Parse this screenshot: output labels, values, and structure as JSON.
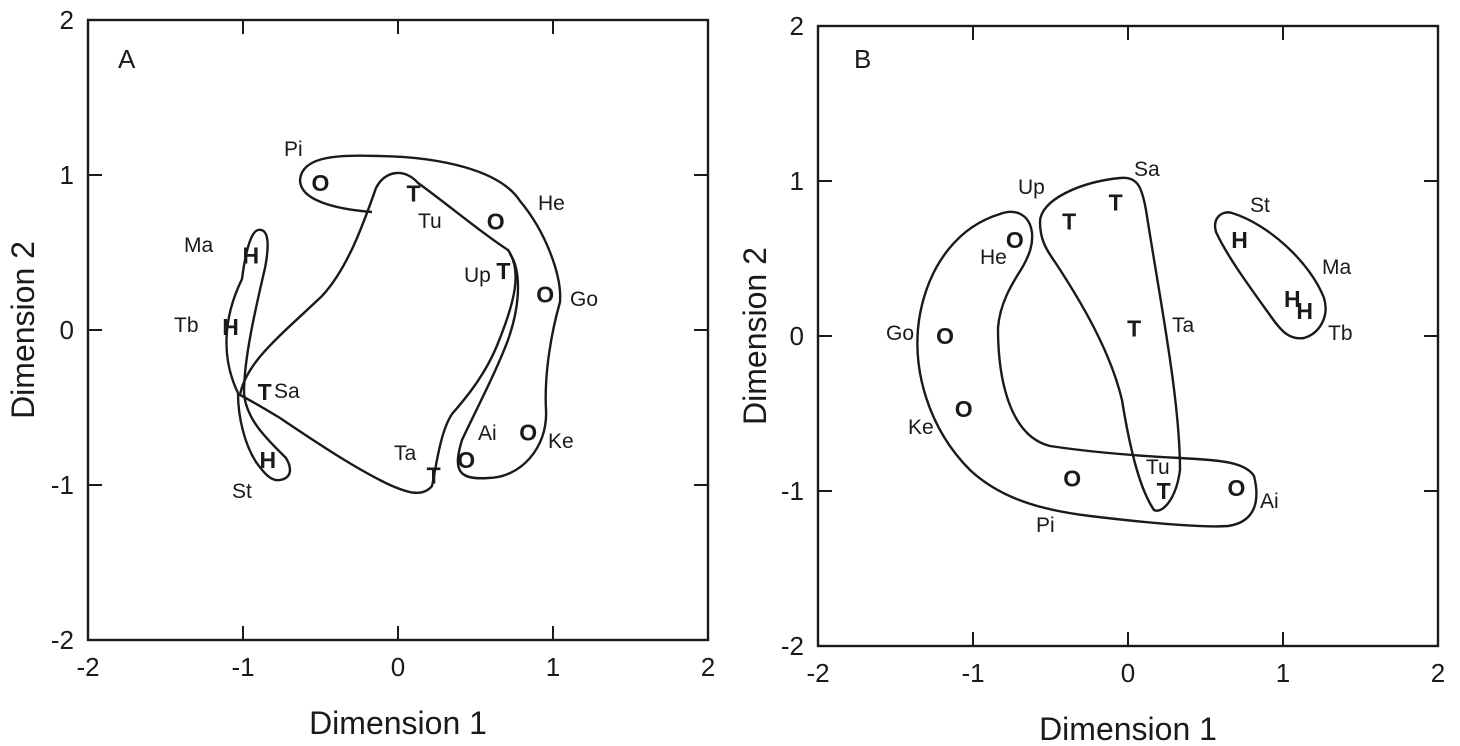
{
  "chart_data": [
    {
      "type": "scatter",
      "panel_label": "A",
      "xlabel": "Dimension 1",
      "ylabel": "Dimension 2",
      "xlim": [
        -2,
        2
      ],
      "ylim": [
        -2,
        2
      ],
      "xticks": [
        -2,
        -1,
        0,
        1,
        2
      ],
      "yticks": [
        -2,
        -1,
        0,
        1,
        2
      ],
      "grid": false,
      "points": [
        {
          "label": "Pi",
          "symbol": "O",
          "x": -0.5,
          "y": 0.95
        },
        {
          "label": "Tu",
          "symbol": "T",
          "x": 0.1,
          "y": 0.88
        },
        {
          "label": "He",
          "symbol": "O",
          "x": 0.63,
          "y": 0.7
        },
        {
          "label": "Up",
          "symbol": "T",
          "x": 0.68,
          "y": 0.38
        },
        {
          "label": "Go",
          "symbol": "O",
          "x": 0.95,
          "y": 0.23
        },
        {
          "label": "Ma",
          "symbol": "H",
          "x": -0.95,
          "y": 0.48
        },
        {
          "label": "Tb",
          "symbol": "H",
          "x": -1.08,
          "y": 0.02
        },
        {
          "label": "Sa",
          "symbol": "T",
          "x": -0.86,
          "y": -0.4
        },
        {
          "label": "St",
          "symbol": "H",
          "x": -0.84,
          "y": -0.84
        },
        {
          "label": "Ta",
          "symbol": "T",
          "x": 0.23,
          "y": -0.94
        },
        {
          "label": "Ai",
          "symbol": "O",
          "x": 0.44,
          "y": -0.84
        },
        {
          "label": "Ke",
          "symbol": "O",
          "x": 0.84,
          "y": -0.66
        }
      ]
    },
    {
      "type": "scatter",
      "panel_label": "B",
      "xlabel": "Dimension 1",
      "ylabel": "Dimension 2",
      "xlim": [
        -2,
        2
      ],
      "ylim": [
        -2,
        2
      ],
      "xticks": [
        -2,
        -1,
        0,
        1,
        2
      ],
      "yticks": [
        -2,
        -1,
        0,
        1,
        2
      ],
      "grid": false,
      "points": [
        {
          "label": "Sa",
          "symbol": "T",
          "x": -0.08,
          "y": 0.86
        },
        {
          "label": "",
          "symbol": "T",
          "x": -0.38,
          "y": 0.74
        },
        {
          "label": "Up",
          "symbol": "",
          "x": -0.6,
          "y": 0.94
        },
        {
          "label": "He",
          "symbol": "O",
          "x": -0.73,
          "y": 0.62
        },
        {
          "label": "St",
          "symbol": "H",
          "x": 0.72,
          "y": 0.62
        },
        {
          "label": "Ma",
          "symbol": "H",
          "x": 1.06,
          "y": 0.24
        },
        {
          "label": "Tb",
          "symbol": "H",
          "x": 1.14,
          "y": 0.16
        },
        {
          "label": "Ta",
          "symbol": "T",
          "x": 0.04,
          "y": 0.05
        },
        {
          "label": "Go",
          "symbol": "O",
          "x": -1.18,
          "y": 0.0
        },
        {
          "label": "Ke",
          "symbol": "O",
          "x": -1.06,
          "y": -0.47
        },
        {
          "label": "",
          "symbol": "O",
          "x": -0.36,
          "y": -0.92
        },
        {
          "label": "Tu",
          "symbol": "T",
          "x": 0.23,
          "y": -1.0
        },
        {
          "label": "Ai",
          "symbol": "O",
          "x": 0.7,
          "y": -0.98
        },
        {
          "label": "Pi",
          "symbol": "",
          "x": -0.52,
          "y": -1.22
        }
      ]
    }
  ]
}
